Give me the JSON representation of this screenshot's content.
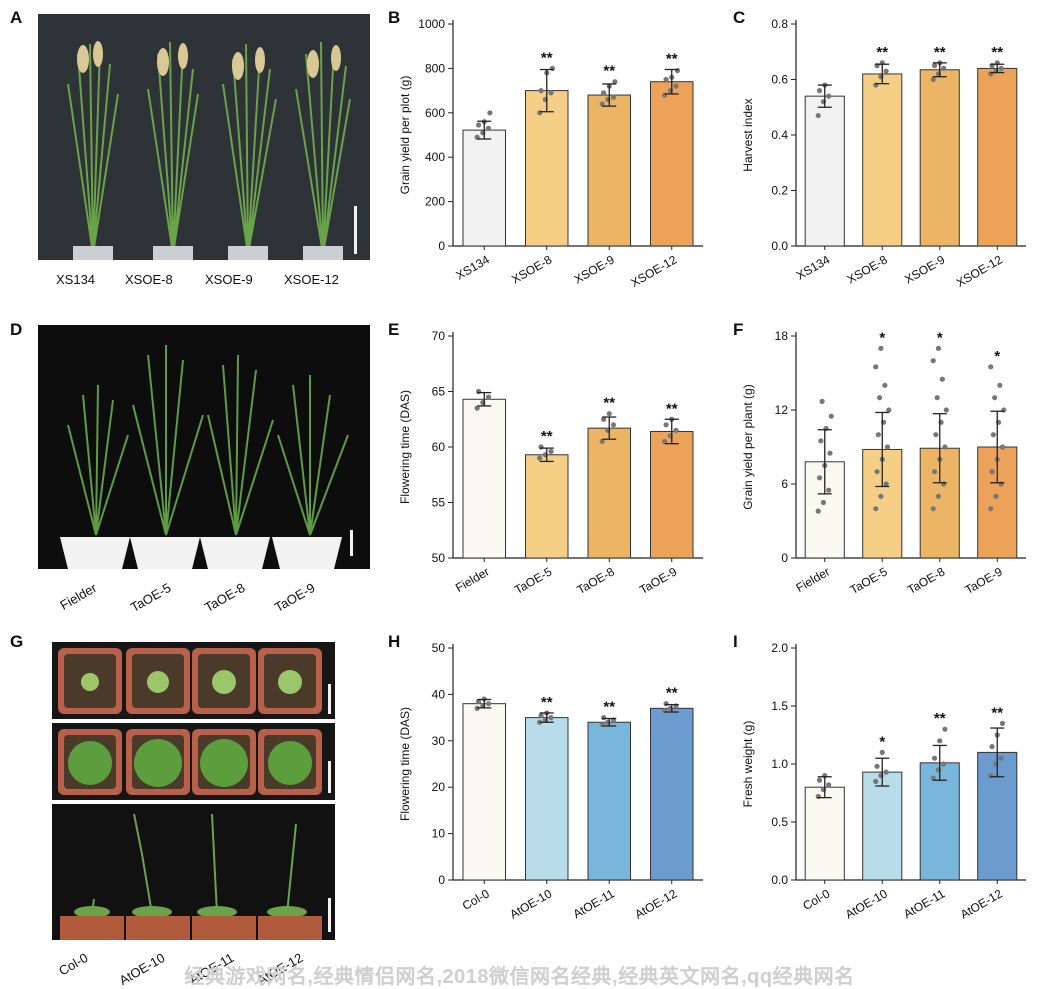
{
  "figure": {
    "panel_letters": [
      "A",
      "B",
      "C",
      "D",
      "E",
      "F",
      "G",
      "H",
      "I"
    ],
    "photos": {
      "A": {
        "labels": [
          "XS134",
          "XSOE-8",
          "XSOE-9",
          "XSOE-12"
        ]
      },
      "D": {
        "labels": [
          "Fielder",
          "TaOE-5",
          "TaOE-8",
          "TaOE-9"
        ]
      },
      "G": {
        "labels": [
          "Col-0",
          "AtOE-10",
          "AtOE-11",
          "AtOE-12"
        ]
      }
    },
    "watermark": "经典游戏网名,经典情侣网名,2018微信网名经典,经典英文网名,qq经典网名"
  },
  "chart_data": [
    {
      "panel": "B",
      "type": "bar",
      "categories": [
        "XS134",
        "XSOE-8",
        "XSOE-9",
        "XSOE-12"
      ],
      "values": [
        522,
        700,
        680,
        740
      ],
      "errors": [
        40,
        95,
        50,
        55
      ],
      "significance": [
        "",
        "**",
        "**",
        "**"
      ],
      "ylabel": "Grain yield per plot (g)",
      "ylim": [
        0,
        1000
      ],
      "yticks": [
        0,
        200,
        400,
        600,
        800,
        1000
      ],
      "colors": [
        "#f2f2f2",
        "#f5cf86",
        "#ecb565",
        "#eda25a"
      ],
      "points": [
        [
          490,
          510,
          530,
          545,
          560,
          600
        ],
        [
          600,
          660,
          690,
          700,
          780,
          800
        ],
        [
          640,
          660,
          670,
          690,
          720,
          740
        ],
        [
          680,
          700,
          720,
          750,
          760,
          790
        ]
      ]
    },
    {
      "panel": "C",
      "type": "bar",
      "categories": [
        "XS134",
        "XSOE-8",
        "XSOE-9",
        "XSOE-12"
      ],
      "values": [
        0.54,
        0.62,
        0.635,
        0.64
      ],
      "errors": [
        0.04,
        0.035,
        0.025,
        0.015
      ],
      "significance": [
        "",
        "**",
        "**",
        "**"
      ],
      "ylabel": "Harvest index",
      "ylim": [
        0,
        0.8
      ],
      "yticks": [
        0.0,
        0.2,
        0.4,
        0.6,
        0.8
      ],
      "colors": [
        "#f2f2f2",
        "#f5cf86",
        "#ecb565",
        "#eda25a"
      ],
      "points": [
        [
          0.47,
          0.52,
          0.54,
          0.56,
          0.58
        ],
        [
          0.58,
          0.61,
          0.63,
          0.65,
          0.66
        ],
        [
          0.6,
          0.62,
          0.64,
          0.65,
          0.66
        ],
        [
          0.62,
          0.63,
          0.64,
          0.65,
          0.66
        ]
      ]
    },
    {
      "panel": "E",
      "type": "bar",
      "categories": [
        "Fielder",
        "TaOE-5",
        "TaOE-8",
        "TaOE-9"
      ],
      "values": [
        64.3,
        59.3,
        61.7,
        61.4
      ],
      "errors": [
        0.6,
        0.6,
        1.0,
        1.1
      ],
      "significance": [
        "",
        "**",
        "**",
        "**"
      ],
      "ylabel": "Flowering time (DAS)",
      "ylim": [
        50,
        70
      ],
      "yticks": [
        50,
        55,
        60,
        65,
        70
      ],
      "colors": [
        "#fbfaf2",
        "#f5cf86",
        "#ecb565",
        "#eda25a"
      ],
      "points": [
        [
          63.5,
          64,
          64.5,
          65
        ],
        [
          59,
          59.3,
          59.6,
          60
        ],
        [
          60.5,
          61.5,
          62,
          62.5,
          63
        ],
        [
          60.5,
          61,
          61.5,
          62,
          62.5
        ]
      ]
    },
    {
      "panel": "F",
      "type": "bar",
      "categories": [
        "Fielder",
        "TaOE-5",
        "TaOE-8",
        "TaOE-9"
      ],
      "values": [
        7.8,
        8.8,
        8.9,
        9.0
      ],
      "errors": [
        2.6,
        3.0,
        2.8,
        2.9
      ],
      "significance": [
        "",
        "*",
        "*",
        "*"
      ],
      "ylabel": "Grain yield per plant (g)",
      "ylim": [
        0,
        18
      ],
      "yticks": [
        0,
        6,
        12,
        18
      ],
      "colors": [
        "#fbfaf2",
        "#f5cf86",
        "#ecb565",
        "#eda25a"
      ],
      "points": [
        [
          3.8,
          4.5,
          5.5,
          6.5,
          7.5,
          8.5,
          9.5,
          10.5,
          11.5,
          12.7
        ],
        [
          4,
          5,
          6,
          7,
          8,
          9,
          10,
          11,
          12,
          13,
          14,
          15.5,
          17
        ],
        [
          4,
          5,
          6,
          7,
          8,
          9,
          10,
          11,
          12,
          13,
          14.5,
          16,
          17
        ],
        [
          4,
          5,
          6,
          7,
          8,
          9,
          10,
          11,
          12,
          13,
          14,
          15.5
        ]
      ]
    },
    {
      "panel": "H",
      "type": "bar",
      "categories": [
        "Col-0",
        "AtOE-10",
        "AtOE-11",
        "AtOE-12"
      ],
      "values": [
        38.0,
        35.0,
        34.0,
        37.0
      ],
      "errors": [
        0.9,
        1.0,
        0.8,
        0.8
      ],
      "significance": [
        "",
        "**",
        "**",
        "**"
      ],
      "ylabel": "Flowering time (DAS)",
      "ylim": [
        0,
        50
      ],
      "yticks": [
        0,
        10,
        20,
        30,
        40,
        50
      ],
      "colors": [
        "#fbfaf2",
        "#b9dcea",
        "#79b6db",
        "#6b9bcf"
      ],
      "points": [
        [
          37,
          37.5,
          38,
          38.5,
          39
        ],
        [
          34,
          34.5,
          35,
          35.5,
          36
        ],
        [
          33.5,
          34,
          34.5,
          35
        ],
        [
          36.5,
          37,
          37.5,
          38
        ]
      ]
    },
    {
      "panel": "I",
      "type": "bar",
      "categories": [
        "Col-0",
        "AtOE-10",
        "AtOE-11",
        "AtOE-12"
      ],
      "values": [
        0.8,
        0.93,
        1.01,
        1.1
      ],
      "errors": [
        0.09,
        0.12,
        0.15,
        0.21
      ],
      "significance": [
        "",
        "*",
        "**",
        "**"
      ],
      "ylabel": "Fresh weight (g)",
      "ylim": [
        0,
        2.0
      ],
      "yticks": [
        0.0,
        0.5,
        1.0,
        1.5,
        2.0
      ],
      "colors": [
        "#fbfaf2",
        "#b9dcea",
        "#79b6db",
        "#6b9bcf"
      ],
      "points": [
        [
          0.72,
          0.78,
          0.82,
          0.86,
          0.9
        ],
        [
          0.85,
          0.9,
          0.93,
          0.98,
          1.1
        ],
        [
          0.88,
          0.95,
          1.0,
          1.05,
          1.2,
          1.3
        ],
        [
          0.9,
          1.0,
          1.05,
          1.15,
          1.25,
          1.35
        ]
      ]
    }
  ]
}
